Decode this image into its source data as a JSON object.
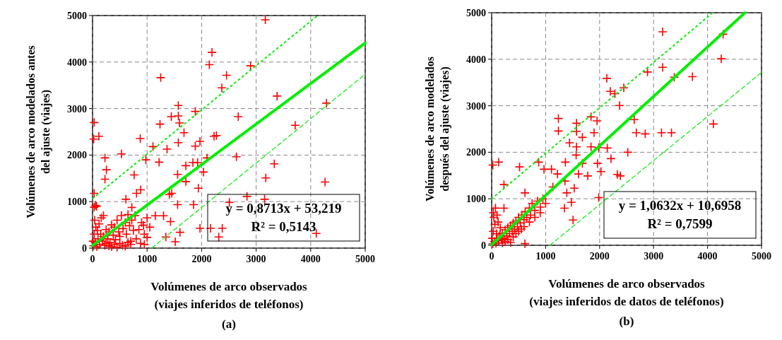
{
  "chart_data": [
    {
      "type": "scatter",
      "title": "(a)",
      "xlabel": "Volúmenes de arco observados\n(viajes inferidos de teléfonos)",
      "ylabel": "Volúmenes de arco modelados antes\ndel ajuste (viajes)",
      "annotations": [
        "y = 0,8713x + 53,219",
        "R² = 0,5143"
      ],
      "xlim": [
        0,
        5000
      ],
      "ylim": [
        0,
        5000
      ],
      "xticks": [
        0,
        1000,
        2000,
        3000,
        4000,
        5000
      ],
      "yticks": [
        0,
        1000,
        2000,
        3000,
        4000,
        5000
      ],
      "grid": true,
      "series": [
        {
          "type": "scatter",
          "color": "#ff0000",
          "marker": "cross",
          "x": [
            3168,
            2190,
            2142,
            1250,
            2457,
            2371,
            2897,
            3384,
            4289,
            2672,
            3716,
            1884,
            1573,
            1573,
            1444,
            1237,
            1595,
            1677,
            30,
            22,
            116,
            875,
            1108,
            1366,
            1573,
            1884,
            1970,
            2228,
            2272,
            2638,
            530,
            228,
            254,
            228,
            763,
            978,
            1220,
            1840,
            1927,
            2099,
            2034,
            1711,
            1560,
            1711,
            3332,
            3177,
            4263,
            1940,
            884,
            806,
            1453,
            1409,
            2832,
            3155,
            2509,
            1853,
            1560,
            612,
            73,
            30,
            1970,
            2164,
            2379,
            2315,
            4103,
            1603,
            1345,
            1517,
            1151,
            1302,
            1431,
            935,
            720,
            20,
            50,
            80,
            100,
            130,
            150,
            180,
            200,
            220,
            250,
            280,
            300,
            320,
            350,
            380,
            400,
            420,
            450,
            480,
            500,
            530,
            560,
            600,
            620,
            650,
            680,
            700,
            720,
            750,
            780,
            30,
            60,
            40,
            90,
            10,
            120,
            160,
            200,
            250,
            300,
            350,
            400,
            450,
            500,
            550,
            600,
            650,
            700,
            800,
            850,
            900,
            950,
            1000,
            1050,
            880,
            950,
            1000,
            30,
            55
          ],
          "values": [
            4909,
            4208,
            3944,
            3665,
            3716,
            3447,
            3919,
            3269,
            3117,
            2827,
            2640,
            2939,
            3066,
            2843,
            2827,
            2665,
            2690,
            2482,
            2700,
            2345,
            2406,
            2355,
            2183,
            2127,
            2269,
            2193,
            2294,
            2406,
            2421,
            1964,
            2025,
            1939,
            1685,
            1482,
            1574,
            1898,
            1848,
            1838,
            1838,
            1939,
            1635,
            1772,
            1584,
            1431,
            1812,
            1508,
            1421,
            1289,
            1254,
            1178,
            1178,
            1152,
            1112,
            1051,
            985,
            934,
            934,
            1051,
            898,
            1178,
            426,
            426,
            426,
            239,
            315,
            340,
            239,
            137,
            695,
            695,
            569,
            492,
            873,
            50,
            120,
            30,
            200,
            80,
            300,
            150,
            250,
            60,
            400,
            200,
            350,
            120,
            500,
            280,
            450,
            180,
            600,
            350,
            250,
            700,
            420,
            550,
            300,
            720,
            480,
            150,
            600,
            380,
            700,
            300,
            450,
            600,
            380,
            150,
            520,
            650,
            700,
            100,
            50,
            30,
            80,
            20,
            100,
            60,
            40,
            120,
            80,
            200,
            400,
            550,
            300,
            650,
            450,
            100,
            80,
            230,
            880,
            920
          ]
        },
        {
          "type": "line",
          "color": "#00ee00",
          "line_style": "solid",
          "x": [
            0,
            5000
          ],
          "values": [
            53.219,
            4409.719
          ]
        },
        {
          "type": "line",
          "color": "#00ee00",
          "line_style": "dotted",
          "x": [
            0,
            4129
          ],
          "values": [
            1066,
            5000
          ]
        },
        {
          "type": "line",
          "color": "#00ee00",
          "line_style": "dashed",
          "x": [
            1086,
            5000
          ],
          "values": [
            0,
            3740
          ]
        }
      ]
    },
    {
      "type": "scatter",
      "title": "(b)",
      "xlabel": "Volúmenes de arco observados\n(viajes inferidos de datos de teléfonos)",
      "ylabel": "Volúmenes de arco modelados\ndespués del ajuste (viajes)",
      "annotations": [
        "y = 1,0632x + 10,6958",
        "R² = 0,7599"
      ],
      "xlim": [
        0,
        5000
      ],
      "ylim": [
        0,
        5000
      ],
      "xticks": [
        0,
        1000,
        2000,
        3000,
        4000,
        5000
      ],
      "yticks": [
        0,
        1000,
        2000,
        3000,
        4000,
        5000
      ],
      "grid": true,
      "series": [
        {
          "type": "scatter",
          "color": "#ff0000",
          "marker": "cross",
          "x": [
            3168,
            4289,
            4254,
            3168,
            2888,
            3384,
            3720,
            2134,
            2198,
            2284,
            2448,
            2371,
            2642,
            2681,
            2845,
            3147,
            3332,
            4108,
            1237,
            1237,
            1841,
            1953,
            1897,
            1573,
            1573,
            1681,
            1444,
            1573,
            1841,
            1983,
            2142,
            2522,
            2211,
            1565,
            1366,
            1681,
            1961,
            2026,
            1780,
            1608,
            2328,
            2384,
            871,
            970,
            1108,
            1220,
            517,
            22,
            129,
            228,
            616,
            1358,
            1530,
            1392,
            1134,
            1478,
            1349,
            1983,
            1508,
            228,
            616,
            20,
            50,
            80,
            100,
            130,
            150,
            180,
            200,
            230,
            250,
            280,
            300,
            330,
            350,
            380,
            400,
            420,
            450,
            480,
            500,
            530,
            560,
            600,
            620,
            650,
            700,
            720,
            750,
            800,
            850,
            900,
            950,
            1000,
            30,
            60,
            40,
            90,
            10,
            120,
            160,
            200,
            250,
            300,
            350,
            400,
            450,
            500,
            550,
            600,
            700,
            800,
            900,
            30,
            70,
            100
          ],
          "values": [
            4589,
            4538,
            4010,
            3827,
            3726,
            3614,
            3624,
            3589,
            3310,
            3259,
            3386,
            3005,
            2701,
            2421,
            2396,
            2421,
            2421,
            2609,
            2726,
            2457,
            2761,
            2675,
            2421,
            2624,
            2447,
            2320,
            2203,
            2117,
            2117,
            2102,
            2091,
            2000,
            1863,
            1939,
            1787,
            1761,
            1761,
            1584,
            1492,
            1533,
            1523,
            1492,
            1787,
            1635,
            1635,
            1533,
            1685,
            1726,
            1787,
            1305,
            1127,
            1381,
            1228,
            1127,
            1254,
            924,
            797,
            1025,
            543,
            797,
            36,
            30,
            80,
            40,
            150,
            100,
            220,
            120,
            260,
            150,
            330,
            200,
            380,
            250,
            420,
            300,
            480,
            350,
            520,
            400,
            600,
            480,
            650,
            550,
            720,
            600,
            800,
            650,
            900,
            750,
            950,
            820,
            1000,
            900,
            300,
            450,
            600,
            250,
            150,
            500,
            380,
            50,
            80,
            120,
            60,
            180,
            250,
            300,
            350,
            400,
            500,
            600,
            700,
            700,
            800,
            650
          ]
        },
        {
          "type": "line",
          "color": "#00ee00",
          "line_style": "solid",
          "x": [
            0,
            4693
          ],
          "values": [
            10.6958,
            5000
          ]
        },
        {
          "type": "line",
          "color": "#00ee00",
          "line_style": "dotted",
          "x": [
            0,
            4095
          ],
          "values": [
            1000,
            5000
          ]
        },
        {
          "type": "line",
          "color": "#00ee00",
          "line_style": "dashed",
          "x": [
            1078,
            5000
          ],
          "values": [
            0,
            3716
          ]
        }
      ]
    }
  ]
}
